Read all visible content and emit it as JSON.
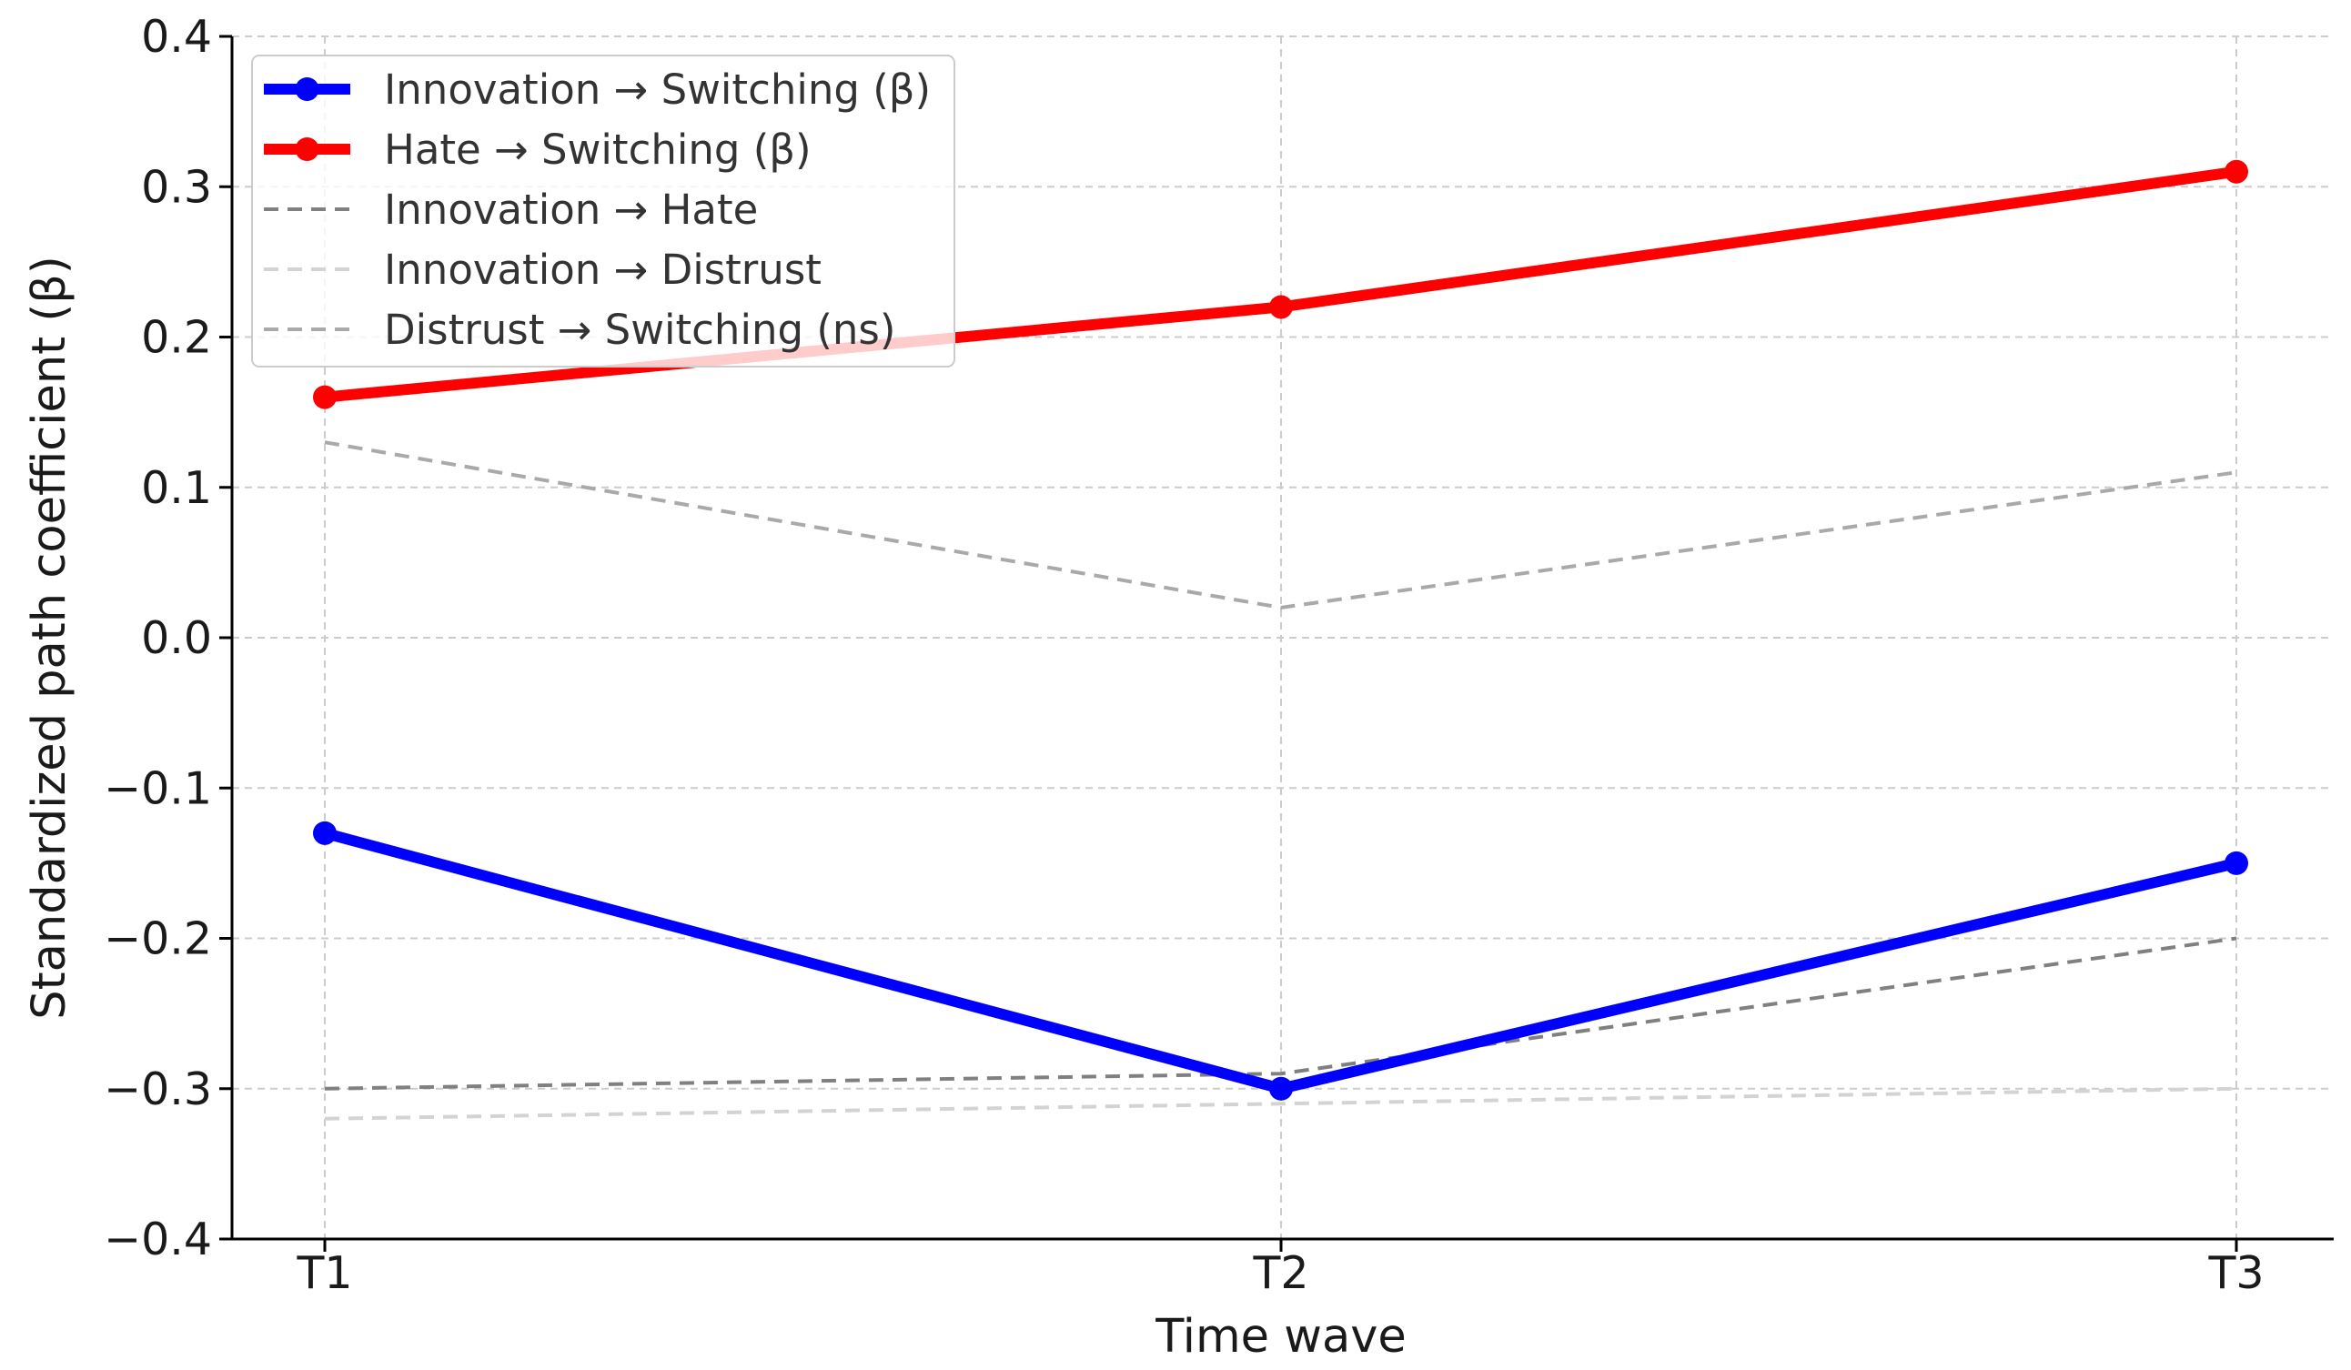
{
  "chart_data": {
    "type": "line",
    "title": "",
    "xlabel": "Time wave",
    "ylabel": "Standardized path coefficient (β)",
    "categories": [
      "T1",
      "T2",
      "T3"
    ],
    "ylim": [
      -0.4,
      0.4
    ],
    "yticks": [
      0.4,
      0.3,
      0.2,
      0.1,
      0.0,
      -0.1,
      -0.2,
      -0.3,
      -0.4
    ],
    "ytick_labels": [
      "0.4",
      "0.3",
      "0.2",
      "0.1",
      "0.0",
      "−0.1",
      "−0.2",
      "−0.3",
      "−0.4"
    ],
    "grid": true,
    "legend_position": "top-left",
    "series": [
      {
        "name": "Innovation → Switching (β)",
        "values": [
          -0.13,
          -0.3,
          -0.15
        ],
        "color": "#0000ff",
        "style": "solid",
        "markers": true
      },
      {
        "name": "Hate → Switching (β)",
        "values": [
          0.16,
          0.22,
          0.31
        ],
        "color": "#ff0000",
        "style": "solid",
        "markers": true
      },
      {
        "name": "Innovation → Hate",
        "values": [
          -0.3,
          -0.29,
          -0.2
        ],
        "color": "#808080",
        "style": "dashed",
        "markers": false
      },
      {
        "name": "Innovation → Distrust",
        "values": [
          -0.32,
          -0.31,
          -0.3
        ],
        "color": "#d3d3d3",
        "style": "dashed",
        "markers": false
      },
      {
        "name": "Distrust → Switching (ns)",
        "values": [
          0.13,
          0.02,
          0.11
        ],
        "color": "#a9a9a9",
        "style": "dashed",
        "markers": false
      }
    ]
  }
}
